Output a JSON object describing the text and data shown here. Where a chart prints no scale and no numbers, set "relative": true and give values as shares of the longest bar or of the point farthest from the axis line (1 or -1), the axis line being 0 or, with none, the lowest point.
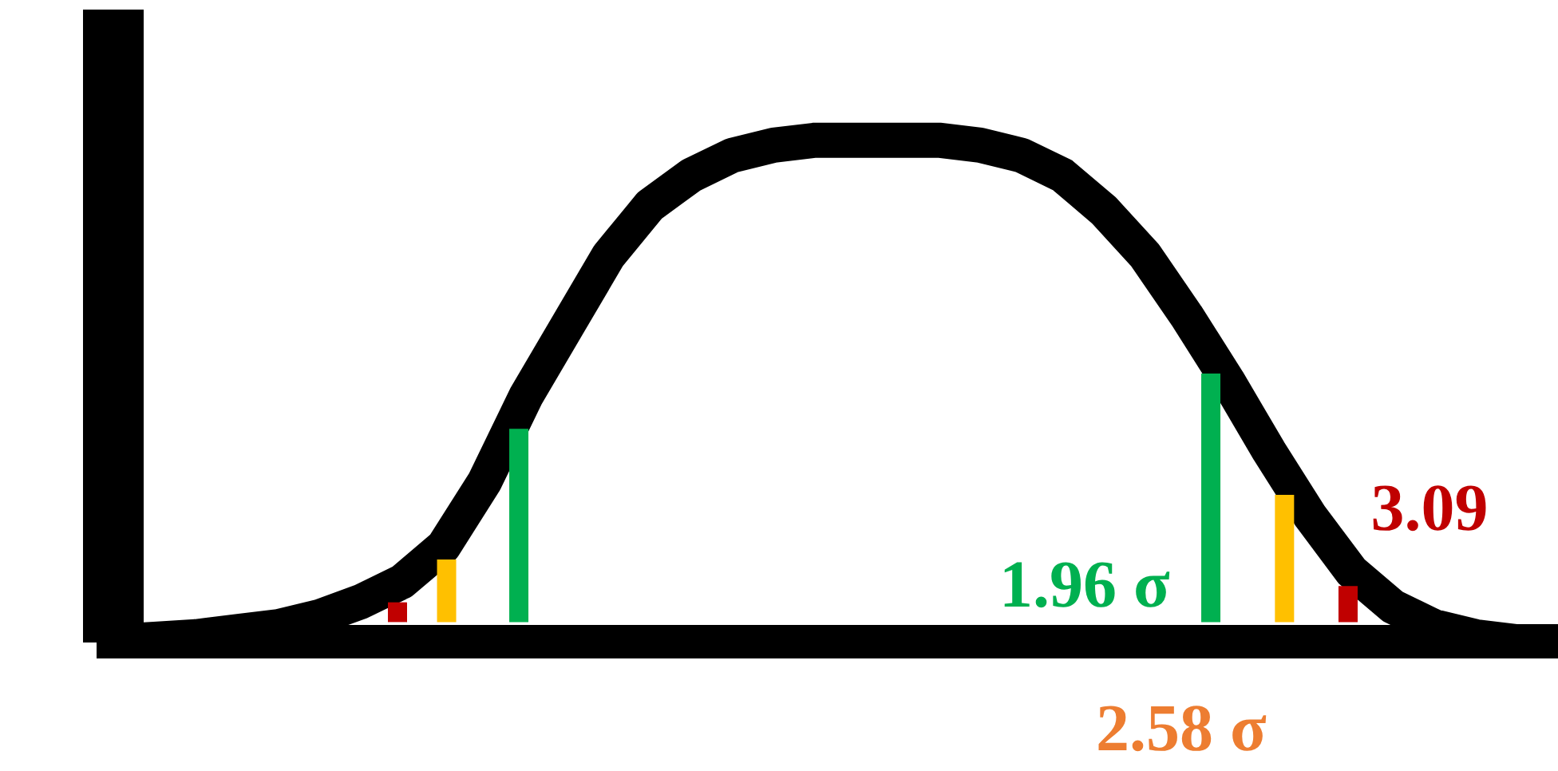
{
  "chart_data": {
    "type": "line",
    "relative": true,
    "tick_labels": false,
    "legend": false,
    "marker": "none",
    "categories": [
      null,
      null,
      null,
      null,
      null,
      null,
      null,
      null,
      null,
      null,
      null,
      null,
      null,
      null,
      null,
      null,
      null,
      null,
      null,
      null,
      null,
      null,
      null,
      null,
      null,
      null,
      null,
      null,
      null,
      null,
      null,
      null,
      null,
      null,
      null,
      null
    ],
    "series": [
      {
        "color": "#000000",
        "values": [
          0,
          0.005,
          0.01,
          0.02,
          0.03,
          0.05,
          0.08,
          0.12,
          0.19,
          0.32,
          0.49,
          0.63,
          0.77,
          0.87,
          0.93,
          0.97,
          0.99,
          1,
          1,
          1,
          1,
          0.99,
          0.97,
          0.93,
          0.86,
          0.77,
          0.65,
          0.52,
          0.38,
          0.25,
          0.14,
          0.07,
          0.03,
          0.01,
          0,
          0
        ]
      }
    ],
    "annotations": [
      "1.96 σ",
      "2.58 σ",
      "3.09"
    ]
  }
}
